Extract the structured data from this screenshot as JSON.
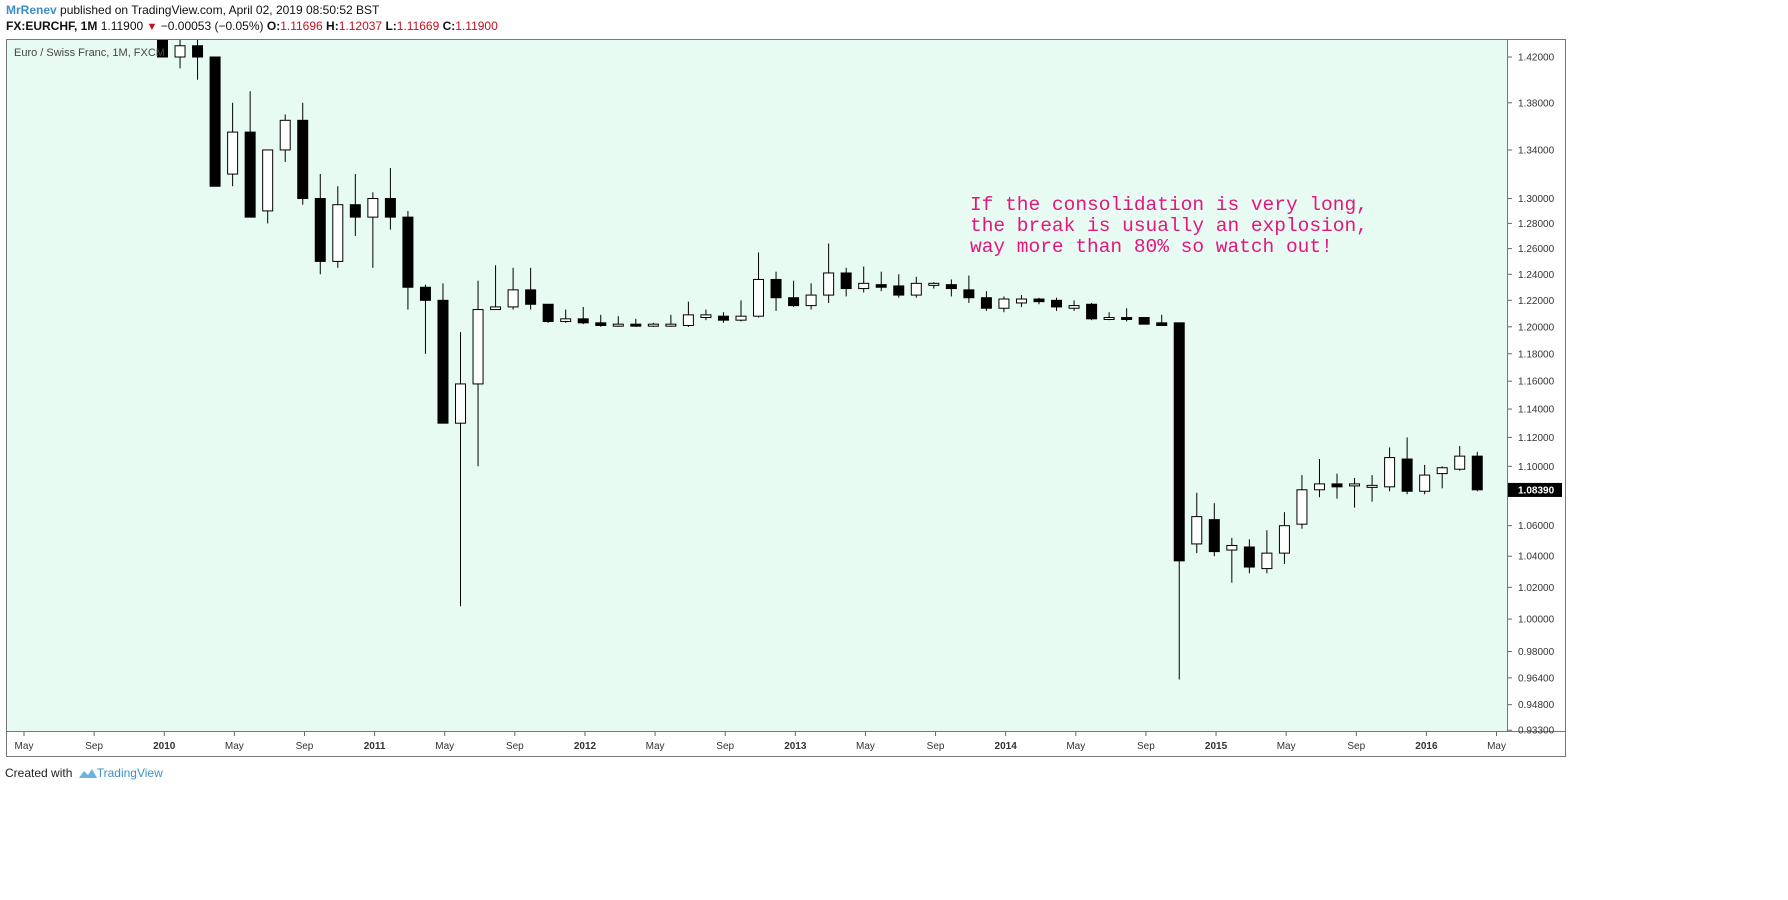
{
  "header": {
    "author": "MrRenev",
    "published_text": "published on TradingView.com, April 02, 2019 08:50:52 BST",
    "symbol": "FX:EURCHF, 1M",
    "last": "1.11900",
    "change_arrow": "▼",
    "change": "−0.00053 (−0.05%)",
    "open_label": "O:",
    "open": "1.11696",
    "high_label": "H:",
    "high": "1.12037",
    "low_label": "L:",
    "low": "1.11669",
    "close_label": "C:",
    "close": "1.11900"
  },
  "series_title": "Euro / Swiss Franc, 1M, FXCM",
  "annotation": "If the consolidation is very long,\nthe break is usually an explosion,\nway more than 80% so watch out!",
  "footer": {
    "created_with": "Created with",
    "brand": "TradingView"
  },
  "colors": {
    "background": "#e8fbf3",
    "annotation": "#e5157c",
    "down_candle": "#000000",
    "up_candle": "#ffffff",
    "accent": "#3a8ec8",
    "change_red": "#c4101e"
  },
  "chart_data": {
    "type": "candlestick",
    "interval": "1M",
    "y_scale": "log",
    "ylim": [
      0.933,
      1.44
    ],
    "y_ticks": [
      "1.42000",
      "1.38000",
      "1.34000",
      "1.30000",
      "1.28000",
      "1.26000",
      "1.24000",
      "1.22000",
      "1.20000",
      "1.18000",
      "1.16000",
      "1.14000",
      "1.12000",
      "1.10000",
      "1.06000",
      "1.04000",
      "1.02000",
      "1.00000",
      "0.98000",
      "0.96400",
      "0.94800",
      "0.93300"
    ],
    "current_price_label": "1.08390",
    "x_ticks": [
      "May",
      "Sep",
      "2010",
      "May",
      "Sep",
      "2011",
      "May",
      "Sep",
      "2012",
      "May",
      "Sep",
      "2013",
      "May",
      "Sep",
      "2014",
      "May",
      "Sep",
      "2015",
      "May",
      "Sep",
      "2016",
      "May"
    ],
    "candles": [
      {
        "o": 1.44,
        "h": 1.45,
        "l": 1.42,
        "c": 1.42
      },
      {
        "o": 1.42,
        "h": 1.44,
        "l": 1.41,
        "c": 1.43
      },
      {
        "o": 1.43,
        "h": 1.45,
        "l": 1.4,
        "c": 1.42
      },
      {
        "o": 1.42,
        "h": 1.42,
        "l": 1.31,
        "c": 1.31
      },
      {
        "o": 1.32,
        "h": 1.38,
        "l": 1.31,
        "c": 1.355
      },
      {
        "o": 1.355,
        "h": 1.39,
        "l": 1.285,
        "c": 1.285
      },
      {
        "o": 1.29,
        "h": 1.34,
        "l": 1.28,
        "c": 1.34
      },
      {
        "o": 1.34,
        "h": 1.37,
        "l": 1.33,
        "c": 1.365
      },
      {
        "o": 1.365,
        "h": 1.38,
        "l": 1.295,
        "c": 1.3
      },
      {
        "o": 1.3,
        "h": 1.32,
        "l": 1.24,
        "c": 1.25
      },
      {
        "o": 1.25,
        "h": 1.31,
        "l": 1.245,
        "c": 1.295
      },
      {
        "o": 1.295,
        "h": 1.32,
        "l": 1.27,
        "c": 1.285
      },
      {
        "o": 1.285,
        "h": 1.305,
        "l": 1.245,
        "c": 1.3
      },
      {
        "o": 1.3,
        "h": 1.325,
        "l": 1.275,
        "c": 1.285
      },
      {
        "o": 1.285,
        "h": 1.29,
        "l": 1.213,
        "c": 1.23
      },
      {
        "o": 1.23,
        "h": 1.232,
        "l": 1.18,
        "c": 1.22
      },
      {
        "o": 1.22,
        "h": 1.233,
        "l": 1.13,
        "c": 1.13
      },
      {
        "o": 1.13,
        "h": 1.196,
        "l": 1.008,
        "c": 1.158
      },
      {
        "o": 1.158,
        "h": 1.235,
        "l": 1.1,
        "c": 1.213
      },
      {
        "o": 1.213,
        "h": 1.247,
        "l": 1.213,
        "c": 1.215
      },
      {
        "o": 1.215,
        "h": 1.245,
        "l": 1.213,
        "c": 1.228
      },
      {
        "o": 1.228,
        "h": 1.245,
        "l": 1.213,
        "c": 1.217
      },
      {
        "o": 1.217,
        "h": 1.217,
        "l": 1.203,
        "c": 1.204
      },
      {
        "o": 1.204,
        "h": 1.213,
        "l": 1.203,
        "c": 1.206
      },
      {
        "o": 1.206,
        "h": 1.215,
        "l": 1.202,
        "c": 1.203
      },
      {
        "o": 1.203,
        "h": 1.209,
        "l": 1.2,
        "c": 1.201
      },
      {
        "o": 1.201,
        "h": 1.208,
        "l": 1.2,
        "c": 1.202
      },
      {
        "o": 1.202,
        "h": 1.206,
        "l": 1.2,
        "c": 1.201
      },
      {
        "o": 1.201,
        "h": 1.203,
        "l": 1.2,
        "c": 1.202
      },
      {
        "o": 1.201,
        "h": 1.209,
        "l": 1.2,
        "c": 1.202
      },
      {
        "o": 1.201,
        "h": 1.219,
        "l": 1.2,
        "c": 1.209
      },
      {
        "o": 1.207,
        "h": 1.213,
        "l": 1.205,
        "c": 1.209
      },
      {
        "o": 1.208,
        "h": 1.211,
        "l": 1.203,
        "c": 1.205
      },
      {
        "o": 1.205,
        "h": 1.22,
        "l": 1.204,
        "c": 1.208
      },
      {
        "o": 1.208,
        "h": 1.257,
        "l": 1.207,
        "c": 1.236
      },
      {
        "o": 1.236,
        "h": 1.242,
        "l": 1.212,
        "c": 1.222
      },
      {
        "o": 1.222,
        "h": 1.235,
        "l": 1.215,
        "c": 1.216
      },
      {
        "o": 1.216,
        "h": 1.233,
        "l": 1.213,
        "c": 1.224
      },
      {
        "o": 1.224,
        "h": 1.264,
        "l": 1.218,
        "c": 1.241
      },
      {
        "o": 1.241,
        "h": 1.245,
        "l": 1.223,
        "c": 1.229
      },
      {
        "o": 1.229,
        "h": 1.246,
        "l": 1.226,
        "c": 1.233
      },
      {
        "o": 1.232,
        "h": 1.242,
        "l": 1.227,
        "c": 1.23
      },
      {
        "o": 1.231,
        "h": 1.24,
        "l": 1.222,
        "c": 1.224
      },
      {
        "o": 1.224,
        "h": 1.238,
        "l": 1.222,
        "c": 1.233
      },
      {
        "o": 1.232,
        "h": 1.234,
        "l": 1.229,
        "c": 1.233
      },
      {
        "o": 1.232,
        "h": 1.236,
        "l": 1.223,
        "c": 1.229
      },
      {
        "o": 1.228,
        "h": 1.239,
        "l": 1.218,
        "c": 1.222
      },
      {
        "o": 1.222,
        "h": 1.227,
        "l": 1.212,
        "c": 1.214
      },
      {
        "o": 1.214,
        "h": 1.223,
        "l": 1.211,
        "c": 1.221
      },
      {
        "o": 1.218,
        "h": 1.224,
        "l": 1.215,
        "c": 1.221
      },
      {
        "o": 1.221,
        "h": 1.222,
        "l": 1.217,
        "c": 1.219
      },
      {
        "o": 1.22,
        "h": 1.222,
        "l": 1.212,
        "c": 1.215
      },
      {
        "o": 1.214,
        "h": 1.22,
        "l": 1.212,
        "c": 1.216
      },
      {
        "o": 1.217,
        "h": 1.218,
        "l": 1.205,
        "c": 1.206
      },
      {
        "o": 1.206,
        "h": 1.211,
        "l": 1.205,
        "c": 1.207
      },
      {
        "o": 1.207,
        "h": 1.214,
        "l": 1.204,
        "c": 1.206
      },
      {
        "o": 1.207,
        "h": 1.207,
        "l": 1.202,
        "c": 1.202
      },
      {
        "o": 1.203,
        "h": 1.209,
        "l": 1.201,
        "c": 1.201
      },
      {
        "o": 1.203,
        "h": 1.203,
        "l": 0.963,
        "c": 1.037
      },
      {
        "o": 1.048,
        "h": 1.082,
        "l": 1.042,
        "c": 1.066
      },
      {
        "o": 1.064,
        "h": 1.075,
        "l": 1.04,
        "c": 1.043
      },
      {
        "o": 1.044,
        "h": 1.052,
        "l": 1.023,
        "c": 1.047
      },
      {
        "o": 1.046,
        "h": 1.051,
        "l": 1.029,
        "c": 1.033
      },
      {
        "o": 1.032,
        "h": 1.057,
        "l": 1.029,
        "c": 1.042
      },
      {
        "o": 1.042,
        "h": 1.069,
        "l": 1.035,
        "c": 1.06
      },
      {
        "o": 1.061,
        "h": 1.094,
        "l": 1.058,
        "c": 1.084
      },
      {
        "o": 1.084,
        "h": 1.105,
        "l": 1.079,
        "c": 1.088
      },
      {
        "o": 1.088,
        "h": 1.095,
        "l": 1.078,
        "c": 1.086
      },
      {
        "o": 1.087,
        "h": 1.092,
        "l": 1.072,
        "c": 1.088
      },
      {
        "o": 1.086,
        "h": 1.094,
        "l": 1.076,
        "c": 1.087
      },
      {
        "o": 1.086,
        "h": 1.113,
        "l": 1.083,
        "c": 1.106
      },
      {
        "o": 1.105,
        "h": 1.12,
        "l": 1.081,
        "c": 1.083
      },
      {
        "o": 1.083,
        "h": 1.101,
        "l": 1.081,
        "c": 1.094
      },
      {
        "o": 1.095,
        "h": 1.1,
        "l": 1.085,
        "c": 1.099
      },
      {
        "o": 1.098,
        "h": 1.114,
        "l": 1.097,
        "c": 1.107
      },
      {
        "o": 1.107,
        "h": 1.11,
        "l": 1.083,
        "c": 1.084
      }
    ]
  }
}
